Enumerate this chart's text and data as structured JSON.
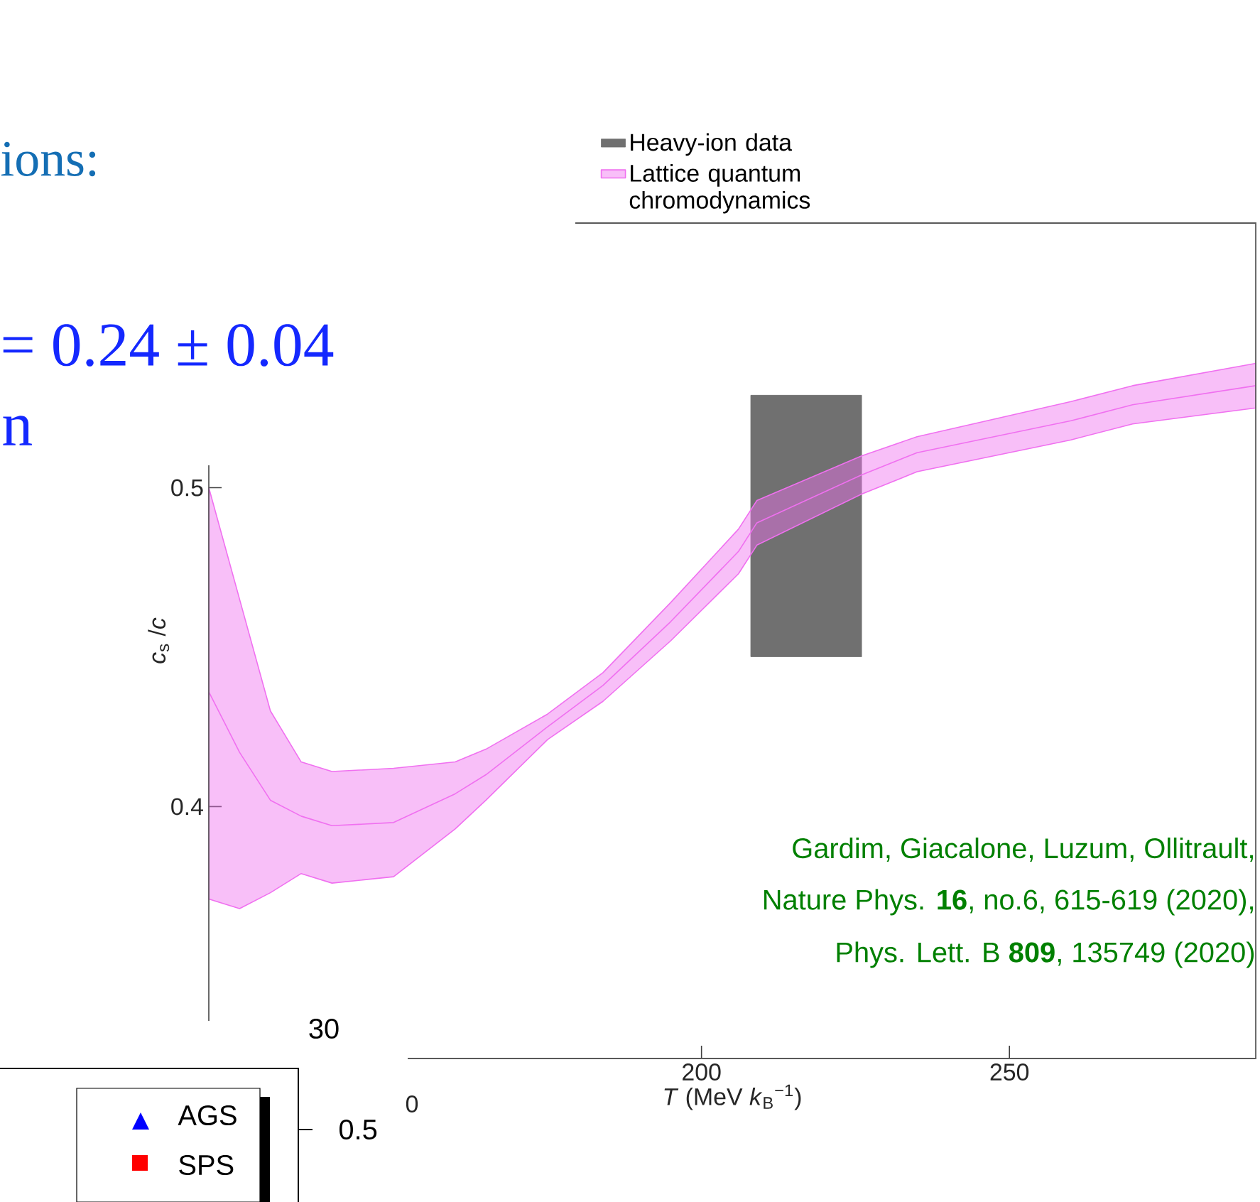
{
  "chart_data": {
    "type": "line",
    "xlabel": "*T* (MeV *k*$_{B}$$^{−1}$)",
    "ylabel": "*c*$_{s}$ /*c*",
    "xlim": [
      120,
      290
    ],
    "ylim": [
      0.321,
      0.583
    ],
    "xticks": [
      200,
      250
    ],
    "yticks": [
      0.4,
      0.5
    ],
    "legend": "top",
    "series": [
      {
        "name": "Heavy-ion data",
        "type": "bar",
        "color": "#707070",
        "x": [
          217
        ],
        "base": [
          0.447
        ],
        "values": [
          0.082
        ]
      },
      {
        "name": "Lattice quantum chromodynamics",
        "color": "#f070f0",
        "x": [
          120,
          125,
          130,
          135,
          140,
          150,
          160,
          165,
          175,
          184,
          195,
          206,
          209,
          226,
          235,
          260,
          270,
          290
        ],
        "values": [
          0.436,
          0.417,
          0.402,
          0.397,
          0.394,
          0.395,
          0.404,
          0.41,
          0.425,
          0.438,
          0.458,
          0.48,
          0.489,
          0.504,
          0.511,
          0.521,
          0.526,
          0.532
        ],
        "lower": [
          0.371,
          0.368,
          0.373,
          0.379,
          0.376,
          0.378,
          0.393,
          0.402,
          0.421,
          0.433,
          0.452,
          0.473,
          0.482,
          0.498,
          0.505,
          0.515,
          0.52,
          0.525
        ],
        "upper": [
          0.5,
          0.465,
          0.43,
          0.414,
          0.411,
          0.412,
          0.414,
          0.418,
          0.429,
          0.442,
          0.464,
          0.487,
          0.496,
          0.51,
          0.516,
          0.527,
          0.532,
          0.539
        ]
      }
    ],
    "annotations": [
      "Gardim, Giacalone, Luzum, Ollitrault,",
      "Nature Phys. **16**, no.6, 615-619 (2020),",
      "Phys. Lett. B **809**, 135749 (2020)",
      "ions:",
      "= 0.24 ± 0.04",
      "n",
      "30",
      "0.5",
      "AGS",
      "SPS",
      "0"
    ]
  }
}
